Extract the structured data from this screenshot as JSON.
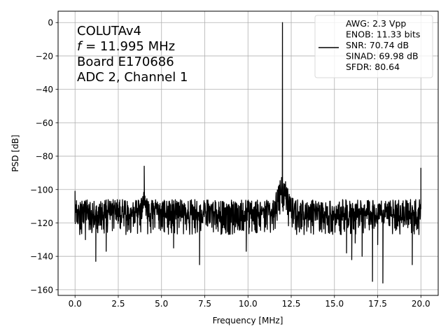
{
  "chart_data": {
    "type": "line",
    "title": "",
    "xlabel": "Frequency [MHz]",
    "ylabel": "PSD [dB]",
    "xlim": [
      -0.98,
      21.0
    ],
    "ylim": [
      -163.4,
      6.8
    ],
    "grid": true,
    "xticks": [
      0.0,
      2.5,
      5.0,
      7.5,
      10.0,
      12.5,
      15.0,
      17.5,
      20.0
    ],
    "xtick_labels": [
      "0.0",
      "2.5",
      "5.0",
      "7.5",
      "10.0",
      "12.5",
      "15.0",
      "17.5",
      "20.0"
    ],
    "yticks": [
      0,
      -20,
      -40,
      -60,
      -80,
      -100,
      -120,
      -140,
      -160
    ],
    "ytick_labels": [
      "0",
      "−20",
      "−40",
      "−60",
      "−80",
      "−100",
      "−120",
      "−140",
      "−160"
    ],
    "annotation_lines": [
      "COLUTAv4",
      "f = 11.995 MHz",
      "Board E170686",
      "ADC 2, Channel 1"
    ],
    "legend": {
      "location": "top-right",
      "lines": [
        "AWG: 2.3 Vpp",
        "ENOB: 11.33 bits",
        "SNR: 70.74 dB",
        "SINAD: 69.98 dB",
        "SFDR: 80.64"
      ]
    },
    "series": [
      {
        "color": "#000000",
        "noise_floor_db": -115,
        "x_range": [
          0.0,
          20.0
        ],
        "features": [
          {
            "x": 0.0,
            "y": -101
          },
          {
            "x": 0.6,
            "y": -130
          },
          {
            "x": 1.2,
            "y": -133
          },
          {
            "x": 1.2,
            "y": -143
          },
          {
            "x": 1.8,
            "y": -137
          },
          {
            "x": 4.0,
            "y": -86
          },
          {
            "x": 5.7,
            "y": -135
          },
          {
            "x": 7.2,
            "y": -145
          },
          {
            "x": 9.9,
            "y": -137
          },
          {
            "x": 11.995,
            "y": 0
          },
          {
            "x": 15.7,
            "y": -138
          },
          {
            "x": 16.0,
            "y": -142
          },
          {
            "x": 16.2,
            "y": -132
          },
          {
            "x": 16.6,
            "y": -140
          },
          {
            "x": 17.2,
            "y": -155
          },
          {
            "x": 17.5,
            "y": -133
          },
          {
            "x": 17.8,
            "y": -156
          },
          {
            "x": 19.5,
            "y": -145
          },
          {
            "x": 20.0,
            "y": -87
          }
        ]
      }
    ]
  }
}
